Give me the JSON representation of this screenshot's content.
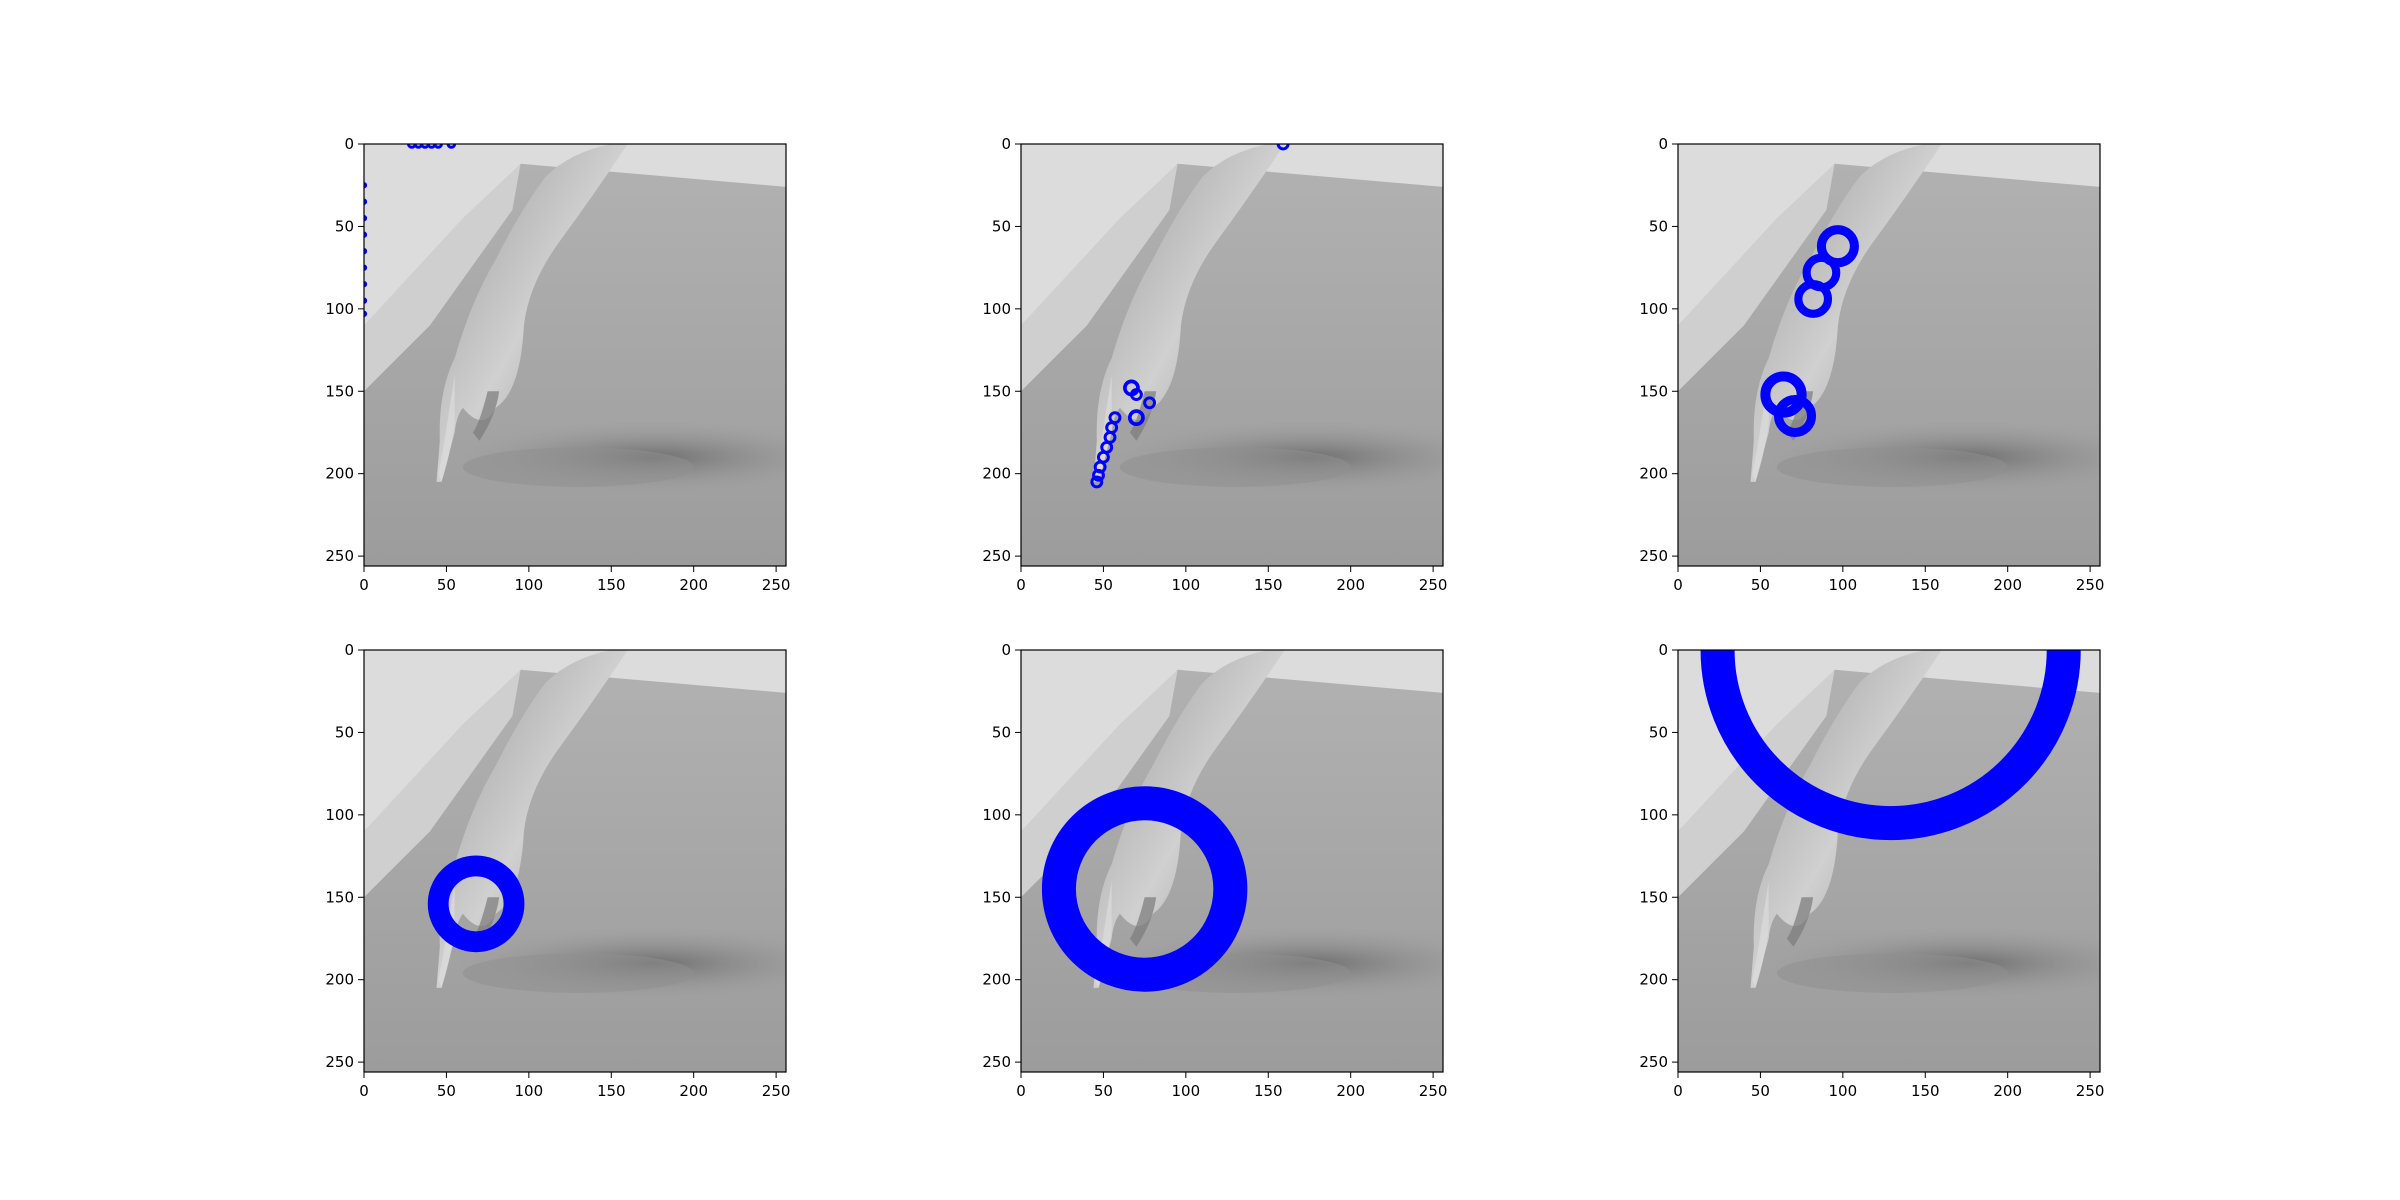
{
  "figure": {
    "layout": "2 rows x 3 columns",
    "background": "#ffffff",
    "marker_color": "#0000ff",
    "image_description_palette": [
      "#d9d9d9",
      "#a6a6a6",
      "#7f7f7f",
      "#555555"
    ]
  },
  "chart_data": [
    {
      "type": "scatter",
      "xlim": [
        0,
        256
      ],
      "ylim": [
        256,
        0
      ],
      "xticks": [
        0,
        50,
        100,
        150,
        200,
        250
      ],
      "yticks": [
        0,
        50,
        100,
        150,
        200,
        250
      ],
      "grid": false,
      "markers": [
        {
          "x": 0,
          "y": 25,
          "r": 1
        },
        {
          "x": 0,
          "y": 35,
          "r": 1
        },
        {
          "x": 0,
          "y": 45,
          "r": 1
        },
        {
          "x": 0,
          "y": 55,
          "r": 1
        },
        {
          "x": 0,
          "y": 65,
          "r": 1
        },
        {
          "x": 0,
          "y": 75,
          "r": 1
        },
        {
          "x": 0,
          "y": 85,
          "r": 1
        },
        {
          "x": 0,
          "y": 95,
          "r": 1
        },
        {
          "x": 0,
          "y": 103,
          "r": 1
        },
        {
          "x": 29,
          "y": 0,
          "r": 2
        },
        {
          "x": 33,
          "y": 0,
          "r": 2
        },
        {
          "x": 37,
          "y": 0,
          "r": 2
        },
        {
          "x": 41,
          "y": 0,
          "r": 2
        },
        {
          "x": 45,
          "y": 0,
          "r": 2
        },
        {
          "x": 53,
          "y": 0,
          "r": 2
        }
      ]
    },
    {
      "type": "scatter",
      "xlim": [
        0,
        256
      ],
      "ylim": [
        256,
        0
      ],
      "xticks": [
        0,
        50,
        100,
        150,
        200,
        250
      ],
      "yticks": [
        0,
        50,
        100,
        150,
        200,
        250
      ],
      "grid": false,
      "markers": [
        {
          "x": 159,
          "y": 0,
          "r": 3
        },
        {
          "x": 67,
          "y": 148,
          "r": 4
        },
        {
          "x": 70,
          "y": 152,
          "r": 3
        },
        {
          "x": 78,
          "y": 157,
          "r": 3
        },
        {
          "x": 70,
          "y": 166,
          "r": 4
        },
        {
          "x": 57,
          "y": 166,
          "r": 3
        },
        {
          "x": 55,
          "y": 172,
          "r": 3
        },
        {
          "x": 54,
          "y": 178,
          "r": 3
        },
        {
          "x": 52,
          "y": 184,
          "r": 3
        },
        {
          "x": 50,
          "y": 190,
          "r": 3
        },
        {
          "x": 48,
          "y": 196,
          "r": 3
        },
        {
          "x": 47,
          "y": 201,
          "r": 3
        },
        {
          "x": 46,
          "y": 205,
          "r": 3
        }
      ]
    },
    {
      "type": "scatter",
      "xlim": [
        0,
        256
      ],
      "ylim": [
        256,
        0
      ],
      "xticks": [
        0,
        50,
        100,
        150,
        200,
        250
      ],
      "yticks": [
        0,
        50,
        100,
        150,
        200,
        250
      ],
      "grid": false,
      "markers": [
        {
          "x": 97,
          "y": 62,
          "r": 10
        },
        {
          "x": 87,
          "y": 78,
          "r": 9
        },
        {
          "x": 82,
          "y": 94,
          "r": 9
        },
        {
          "x": 64,
          "y": 152,
          "r": 11
        },
        {
          "x": 71,
          "y": 165,
          "r": 10
        }
      ]
    },
    {
      "type": "scatter",
      "xlim": [
        0,
        256
      ],
      "ylim": [
        256,
        0
      ],
      "xticks": [
        0,
        50,
        100,
        150,
        200,
        250
      ],
      "yticks": [
        0,
        50,
        100,
        150,
        200,
        250
      ],
      "grid": false,
      "markers": [
        {
          "x": 68,
          "y": 154,
          "r": 23
        }
      ]
    },
    {
      "type": "scatter",
      "xlim": [
        0,
        256
      ],
      "ylim": [
        256,
        0
      ],
      "xticks": [
        0,
        50,
        100,
        150,
        200,
        250
      ],
      "yticks": [
        0,
        50,
        100,
        150,
        200,
        250
      ],
      "grid": false,
      "markers": [
        {
          "x": 75,
          "y": 145,
          "r": 52
        }
      ]
    },
    {
      "type": "scatter",
      "xlim": [
        0,
        256
      ],
      "ylim": [
        256,
        0
      ],
      "xticks": [
        0,
        50,
        100,
        150,
        200,
        250
      ],
      "yticks": [
        0,
        50,
        100,
        150,
        200,
        250
      ],
      "grid": false,
      "markers": [
        {
          "x": 129,
          "y": 0,
          "r": 105
        }
      ]
    }
  ]
}
